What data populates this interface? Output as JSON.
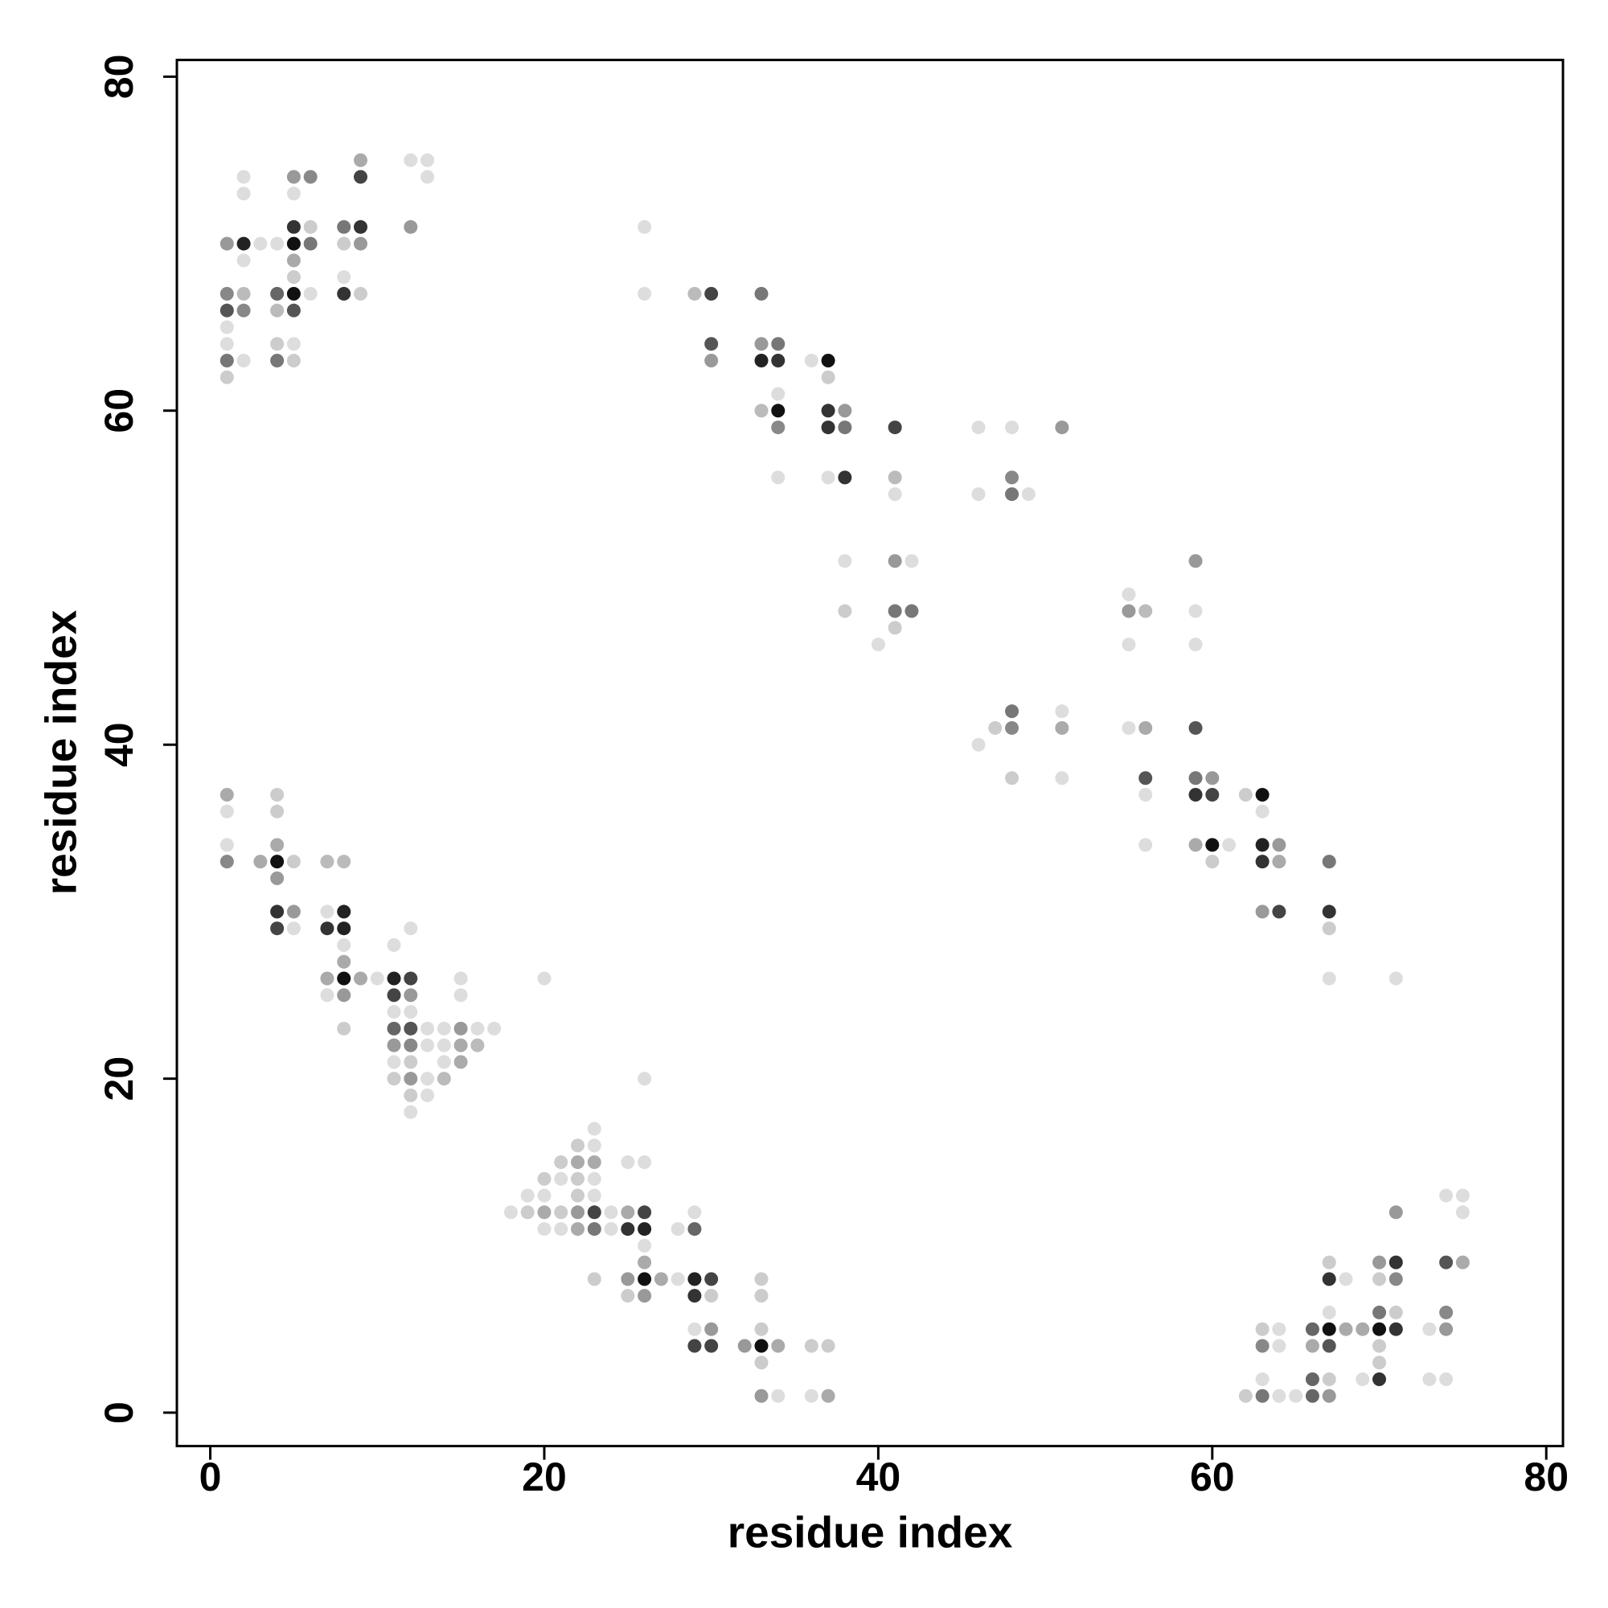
{
  "chart_data": {
    "type": "scatter",
    "xlabel": "residue index",
    "ylabel": "residue index",
    "xlim": [
      -2,
      81
    ],
    "ylim": [
      -2,
      81
    ],
    "xticks": [
      0,
      20,
      40,
      60,
      80
    ],
    "yticks": [
      0,
      20,
      40,
      60,
      80
    ],
    "x": [
      9,
      12,
      13,
      2,
      5,
      6,
      9,
      13,
      2,
      5,
      5,
      6,
      8,
      9,
      12,
      26,
      1,
      2,
      3,
      4,
      5,
      6,
      8,
      9,
      2,
      5,
      5,
      8,
      1,
      2,
      4,
      5,
      6,
      8,
      9,
      26,
      29,
      30,
      33,
      1,
      2,
      4,
      5,
      1,
      1,
      4,
      5,
      30,
      33,
      34,
      1,
      2,
      4,
      5,
      30,
      33,
      34,
      36,
      37,
      1,
      37,
      34,
      33,
      34,
      37,
      38,
      34,
      37,
      38,
      41,
      46,
      48,
      51,
      34,
      37,
      38,
      41,
      48,
      41,
      46,
      48,
      49,
      38,
      41,
      42,
      59,
      55,
      38,
      41,
      42,
      55,
      56,
      59,
      41,
      40,
      55,
      59,
      48,
      51,
      47,
      48,
      51,
      55,
      56,
      59,
      46,
      48,
      51,
      56,
      59,
      60,
      1,
      4,
      56,
      59,
      60,
      62,
      63,
      1,
      4,
      63,
      1,
      4,
      56,
      59,
      60,
      61,
      63,
      64,
      1,
      3,
      4,
      5,
      7,
      8,
      60,
      63,
      64,
      67,
      4,
      4,
      5,
      7,
      8,
      63,
      64,
      67,
      4,
      5,
      7,
      8,
      12,
      67,
      8,
      11,
      8,
      7,
      8,
      9,
      10,
      11,
      12,
      15,
      20,
      67,
      71,
      7,
      8,
      11,
      12,
      15,
      11,
      12,
      8,
      11,
      12,
      13,
      14,
      15,
      16,
      17,
      11,
      12,
      13,
      14,
      15,
      16,
      11,
      12,
      14,
      15,
      11,
      12,
      13,
      14,
      26,
      12,
      13,
      12,
      23,
      22,
      23,
      21,
      22,
      23,
      25,
      26,
      20,
      21,
      22,
      23,
      19,
      20,
      22,
      23,
      74,
      75,
      18,
      19,
      20,
      21,
      22,
      23,
      24,
      25,
      26,
      29,
      71,
      75,
      20,
      21,
      22,
      23,
      24,
      25,
      26,
      28,
      29,
      26,
      26,
      67,
      70,
      71,
      74,
      75,
      23,
      25,
      26,
      27,
      28,
      29,
      30,
      33,
      67,
      68,
      70,
      71,
      25,
      26,
      29,
      30,
      33,
      67,
      70,
      71,
      74,
      29,
      30,
      33,
      63,
      64,
      66,
      67,
      68,
      69,
      70,
      71,
      73,
      74,
      29,
      30,
      32,
      33,
      34,
      36,
      37,
      63,
      64,
      66,
      67,
      70,
      33,
      70,
      63,
      66,
      67,
      69,
      70,
      73,
      74,
      33,
      34,
      36,
      37,
      62,
      63,
      64,
      65,
      66,
      67
    ],
    "values": [
      75,
      75,
      75,
      74,
      74,
      74,
      74,
      74,
      73,
      73,
      71,
      71,
      71,
      71,
      71,
      71,
      70,
      70,
      70,
      70,
      70,
      70,
      70,
      70,
      69,
      69,
      68,
      68,
      67,
      67,
      67,
      67,
      67,
      67,
      67,
      67,
      67,
      67,
      67,
      66,
      66,
      66,
      66,
      65,
      64,
      64,
      64,
      64,
      64,
      64,
      63,
      63,
      63,
      63,
      63,
      63,
      63,
      63,
      63,
      62,
      62,
      61,
      60,
      60,
      60,
      60,
      59,
      59,
      59,
      59,
      59,
      59,
      59,
      56,
      56,
      56,
      56,
      56,
      55,
      55,
      55,
      55,
      51,
      51,
      51,
      51,
      49,
      48,
      48,
      48,
      48,
      48,
      48,
      47,
      46,
      46,
      46,
      42,
      42,
      41,
      41,
      41,
      41,
      41,
      41,
      40,
      38,
      38,
      38,
      38,
      38,
      37,
      37,
      37,
      37,
      37,
      37,
      37,
      36,
      36,
      36,
      34,
      34,
      34,
      34,
      34,
      34,
      34,
      34,
      33,
      33,
      33,
      33,
      33,
      33,
      33,
      33,
      33,
      33,
      32,
      30,
      30,
      30,
      30,
      30,
      30,
      30,
      29,
      29,
      29,
      29,
      29,
      29,
      28,
      28,
      27,
      26,
      26,
      26,
      26,
      26,
      26,
      26,
      26,
      26,
      26,
      25,
      25,
      25,
      25,
      25,
      24,
      24,
      23,
      23,
      23,
      23,
      23,
      23,
      23,
      23,
      22,
      22,
      22,
      22,
      22,
      22,
      21,
      21,
      21,
      21,
      20,
      20,
      20,
      20,
      20,
      19,
      19,
      18,
      17,
      16,
      16,
      15,
      15,
      15,
      15,
      15,
      14,
      14,
      14,
      14,
      13,
      13,
      13,
      13,
      13,
      13,
      12,
      12,
      12,
      12,
      12,
      12,
      12,
      12,
      12,
      12,
      12,
      12,
      11,
      11,
      11,
      11,
      11,
      11,
      11,
      11,
      11,
      10,
      9,
      9,
      9,
      9,
      9,
      9,
      8,
      8,
      8,
      8,
      8,
      8,
      8,
      8,
      8,
      8,
      8,
      8,
      7,
      7,
      7,
      7,
      7,
      6,
      6,
      6,
      6,
      5,
      5,
      5,
      5,
      5,
      5,
      5,
      5,
      5,
      5,
      5,
      5,
      5,
      4,
      4,
      4,
      4,
      4,
      4,
      4,
      4,
      4,
      4,
      4,
      4,
      3,
      3,
      2,
      2,
      2,
      2,
      2,
      2,
      2,
      1,
      1,
      1,
      1,
      1,
      1,
      1,
      1,
      1,
      1
    ],
    "colors": [
      "#aaa",
      "#ddd",
      "#ddd",
      "#ddd",
      "#999",
      "#888",
      "#444",
      "#ddd",
      "#ddd",
      "#ddd",
      "#333",
      "#ccc",
      "#777",
      "#333",
      "#999",
      "#ddd",
      "#999",
      "#222",
      "#ddd",
      "#ddd",
      "#111",
      "#777",
      "#ccc",
      "#999",
      "#ddd",
      "#aaa",
      "#ccc",
      "#ddd",
      "#888",
      "#bbb",
      "#666",
      "#111",
      "#ddd",
      "#333",
      "#ccc",
      "#ddd",
      "#bbb",
      "#444",
      "#777",
      "#555",
      "#888",
      "#bbb",
      "#555",
      "#ddd",
      "#ddd",
      "#ccc",
      "#ddd",
      "#555",
      "#999",
      "#777",
      "#777",
      "#ddd",
      "#777",
      "#ccc",
      "#999",
      "#222",
      "#333",
      "#ddd",
      "#111",
      "#ccc",
      "#ccc",
      "#ddd",
      "#bbb",
      "#111",
      "#333",
      "#999",
      "#888",
      "#333",
      "#777",
      "#444",
      "#ddd",
      "#ddd",
      "#999",
      "#ddd",
      "#ddd",
      "#333",
      "#bbb",
      "#888",
      "#ddd",
      "#ddd",
      "#777",
      "#ddd",
      "#ddd",
      "#999",
      "#ddd",
      "#999",
      "#ddd",
      "#ccc",
      "#777",
      "#777",
      "#999",
      "#bbb",
      "#ddd",
      "#ccc",
      "#ddd",
      "#ddd",
      "#ddd",
      "#777",
      "#ddd",
      "#ccc",
      "#888",
      "#aaa",
      "#ddd",
      "#aaa",
      "#555",
      "#ddd",
      "#ccc",
      "#ddd",
      "#555",
      "#777",
      "#999",
      "#aaa",
      "#ccc",
      "#ddd",
      "#333",
      "#444",
      "#ccc",
      "#111",
      "#ddd",
      "#ccc",
      "#ddd",
      "#ddd",
      "#aaa",
      "#ddd",
      "#aaa",
      "#111",
      "#ddd",
      "#222",
      "#999",
      "#888",
      "#aaa",
      "#111",
      "#ccc",
      "#bbb",
      "#bbb",
      "#ccc",
      "#333",
      "#aaa",
      "#777",
      "#999",
      "#333",
      "#999",
      "#ddd",
      "#222",
      "#999",
      "#444",
      "#333",
      "#444",
      "#ddd",
      "#333",
      "#222",
      "#ddd",
      "#ccc",
      "#ddd",
      "#ddd",
      "#aaa",
      "#aaa",
      "#111",
      "#aaa",
      "#ddd",
      "#222",
      "#444",
      "#ddd",
      "#ddd",
      "#ddd",
      "#ddd",
      "#ddd",
      "#999",
      "#444",
      "#999",
      "#ddd",
      "#ddd",
      "#ddd",
      "#ccc",
      "#666",
      "#555",
      "#ddd",
      "#ddd",
      "#999",
      "#ddd",
      "#ddd",
      "#999",
      "#888",
      "#ddd",
      "#ddd",
      "#aaa",
      "#bbb",
      "#ddd",
      "#ccc",
      "#ddd",
      "#aaa",
      "#ccc",
      "#999",
      "#ddd",
      "#bbb",
      "#ddd",
      "#ccc",
      "#ddd",
      "#ddd",
      "#ddd",
      "#ccc",
      "#ddd",
      "#ccc",
      "#aaa",
      "#aaa",
      "#ddd",
      "#ddd",
      "#ccc",
      "#ddd",
      "#ccc",
      "#ddd",
      "#ddd",
      "#ddd",
      "#ccc",
      "#ddd",
      "#ddd",
      "#ddd",
      "#ddd",
      "#ccc",
      "#aaa",
      "#ccc",
      "#999",
      "#444",
      "#ddd",
      "#aaa",
      "#444",
      "#ddd",
      "#999",
      "#ddd",
      "#ddd",
      "#ddd",
      "#aaa",
      "#777",
      "#ddd",
      "#333",
      "#222",
      "#ddd",
      "#666",
      "#ddd",
      "#aaa",
      "#ccc",
      "#999",
      "#333",
      "#555",
      "#aaa",
      "#ccc",
      "#999",
      "#111",
      "#aaa",
      "#ddd",
      "#222",
      "#444",
      "#ccc",
      "#333",
      "#ddd",
      "#ccc",
      "#888",
      "#ccc",
      "#999",
      "#333",
      "#ccc",
      "#ccc",
      "#ddd",
      "#777",
      "#ccc",
      "#888",
      "#ddd",
      "#999",
      "#ccc",
      "#ccc",
      "#ddd",
      "#666",
      "#111",
      "#aaa",
      "#aaa",
      "#111",
      "#333",
      "#ddd",
      "#999",
      "#444",
      "#444",
      "#999",
      "#111",
      "#aaa",
      "#ccc",
      "#ccc",
      "#888",
      "#ddd",
      "#aaa",
      "#555",
      "#ccc",
      "#ccc",
      "#ccc",
      "#ddd",
      "#666",
      "#ccc",
      "#ddd",
      "#333",
      "#ddd",
      "#ddd",
      "#999",
      "#ddd",
      "#ddd",
      "#aaa",
      "#ccc",
      "#777",
      "#ddd",
      "#ddd",
      "#666",
      "#999"
    ]
  }
}
